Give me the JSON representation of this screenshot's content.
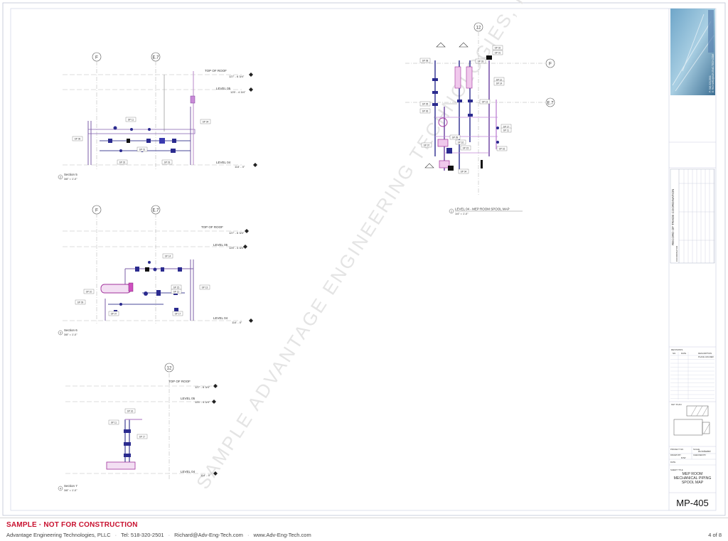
{
  "watermark": "SAMPLE   ADVANTAGE ENGINEERING TECHNOLOGIES, PLLC",
  "grid_labels": {
    "f": "F",
    "e7": "E.7",
    "twelve": "12"
  },
  "levels": {
    "top_of_roof": "TOP OF ROOF",
    "top_of_roof_elev": "127' - 6 3/4\"",
    "level05": "LEVEL 05",
    "level05_elev": "125' - 4 3/4\"",
    "level04": "LEVEL 04",
    "level04_elev": "114' - 0\""
  },
  "views": {
    "s5_num": "2",
    "s5_title": "Section 5",
    "s5_scale": "3/8\" = 1'-0\"",
    "s6_num": "3",
    "s6_title": "Section 6",
    "s6_scale": "3/8\" = 1'-0\"",
    "s7_num": "4",
    "s7_title": "Section 7",
    "s7_scale": "3/8\" = 1'-0\"",
    "plan_num": "1",
    "plan_title": "LEVEL 04 - MEP ROOM SPOOL MAP",
    "plan_scale": "1/4\" = 1'-0\""
  },
  "spool_tags": [
    "SP 16",
    "SP 11",
    "SP 17",
    "SP 13",
    "SP 14",
    "SP 12",
    "SP 15",
    "SP 10",
    "SP 09",
    "SP 07",
    "SP 06",
    "SP 05",
    "SP 08",
    "SP 04",
    "SP 03",
    "SP 02",
    "SP 01"
  ],
  "title_block": {
    "company_lines": [
      "P: 518-320-2501",
      "E: RICHARD@ADV-ENG-TECH.COM"
    ],
    "record_label": "RECORD OF TRADE COORDINATION",
    "coordinator_label": "COORDINATOR",
    "revisions_label": "REVISIONS",
    "rev_col_no": "NO.",
    "rev_col_date": "DATE",
    "rev_col_desc": "DESCRIPTION",
    "rev_first": "PLACE HOLDER",
    "keyplan_label": "KEY PLAN",
    "project_label": "PROJECT NO.",
    "scale_label": "SCALE",
    "scale_value": "As indicated",
    "drawn_label": "DRAWN BY",
    "drawn_value": "RJW",
    "checked_label": "CHECKED BY",
    "date_label": "DATE",
    "sheet_title_label": "SHEET TITLE",
    "sheet_title": [
      "MEP ROOM",
      "MECHANICAL PIPING",
      "SPOOL MAP"
    ],
    "sheet_number": "MP-405"
  },
  "footer": {
    "warning": "SAMPLE · NOT FOR CONSTRUCTION",
    "company": "Advantage Engineering Technologies, PLLC",
    "tel": "Tel: 518-320-2501",
    "email": "Richard@Adv-Eng-Tech.com",
    "web": "www.Adv-Eng-Tech.com",
    "page": "4 of 8"
  }
}
